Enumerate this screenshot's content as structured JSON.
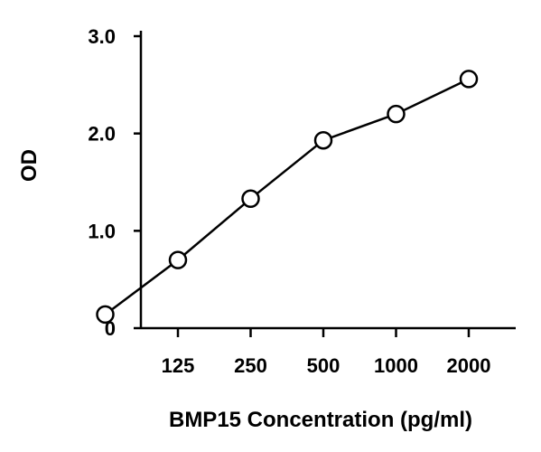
{
  "chart_data": {
    "type": "line",
    "xlabel": "BMP15 Concentration (pg/ml)",
    "ylabel": "OD",
    "x_ticks": [
      125,
      250,
      500,
      1000,
      2000
    ],
    "x_tick_labels": [
      "125",
      "250",
      "500",
      "1000",
      "2000"
    ],
    "y_ticks": [
      0,
      1.0,
      2.0,
      3.0
    ],
    "y_tick_labels": [
      "0",
      "1.0",
      "2.0",
      "3.0"
    ],
    "ylim": [
      0,
      3.0
    ],
    "grid": false,
    "series": [
      {
        "points": [
          {
            "x": 62.5,
            "y": 0.14
          },
          {
            "x": 125,
            "y": 0.7
          },
          {
            "x": 250,
            "y": 1.33
          },
          {
            "x": 500,
            "y": 1.93
          },
          {
            "x": 1000,
            "y": 2.2
          },
          {
            "x": 2000,
            "y": 2.56
          }
        ]
      }
    ]
  }
}
